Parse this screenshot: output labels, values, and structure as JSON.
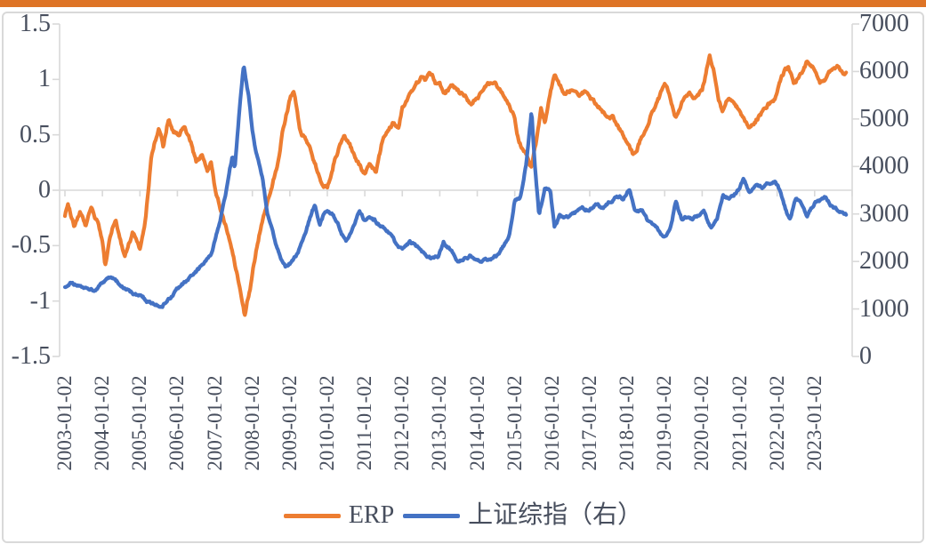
{
  "page": {
    "top_bar_color": "#DE7426",
    "panel_border_color": "#D9D9D9",
    "axis_line_color": "#D9D9D9",
    "axis_text_color": "#474E5D",
    "background_color": "#FFFFFF"
  },
  "chart_data": {
    "type": "line",
    "title": "",
    "grid": "zero-line-only",
    "legend_position": "bottom-center",
    "noise_seed": 987654321,
    "left_axis": {
      "range": [
        -1.5,
        1.5
      ],
      "ticks": [
        1.5,
        1,
        0.5,
        0,
        -0.5,
        -1,
        -1.5
      ],
      "labels": [
        "1.5",
        "1",
        "0.5",
        "0",
        "-0.5",
        "-1",
        "-1.5"
      ]
    },
    "right_axis": {
      "range": [
        0,
        7000
      ],
      "ticks": [
        7000,
        6000,
        5000,
        4000,
        3000,
        2000,
        1000,
        0
      ],
      "labels": [
        "7000",
        "6000",
        "5000",
        "4000",
        "3000",
        "2000",
        "1000",
        "0"
      ]
    },
    "x_axis": {
      "label_years": [
        2003,
        2004,
        2005,
        2006,
        2007,
        2008,
        2009,
        2010,
        2011,
        2012,
        2013,
        2014,
        2015,
        2016,
        2017,
        2018,
        2019,
        2020,
        2021,
        2022,
        2023
      ],
      "tick_years": [
        2003,
        2004,
        2005,
        2006,
        2007,
        2008,
        2009,
        2010,
        2011,
        2012,
        2013,
        2014,
        2015,
        2016,
        2017,
        2018,
        2019,
        2020,
        2021,
        2022,
        2023,
        2024
      ],
      "labels": [
        "2003-01-02",
        "2004-01-02",
        "2005-01-02",
        "2006-01-02",
        "2007-01-02",
        "2008-01-02",
        "2009-01-02",
        "2010-01-02",
        "2011-01-02",
        "2012-01-02",
        "2013-01-02",
        "2014-01-02",
        "2015-01-02",
        "2016-01-02",
        "2017-01-02",
        "2018-01-02",
        "2019-01-02",
        "2020-01-02",
        "2021-01-02",
        "2022-01-02",
        "2023-01-02"
      ]
    },
    "legend": [
      {
        "label": "ERP",
        "color": "#ED7D31"
      },
      {
        "label": "上证综指（右）",
        "color": "#4472C4"
      }
    ],
    "series": [
      {
        "name": "ERP",
        "axis": "left",
        "color": "#ED7D31",
        "noise_amp": 0.03,
        "anchors": [
          [
            2003.0,
            -0.22
          ],
          [
            2003.08,
            -0.13
          ],
          [
            2003.25,
            -0.32
          ],
          [
            2003.4,
            -0.2
          ],
          [
            2003.55,
            -0.33
          ],
          [
            2003.7,
            -0.18
          ],
          [
            2003.85,
            -0.28
          ],
          [
            2004.0,
            -0.48
          ],
          [
            2004.07,
            -0.7
          ],
          [
            2004.2,
            -0.45
          ],
          [
            2004.35,
            -0.27
          ],
          [
            2004.6,
            -0.6
          ],
          [
            2004.8,
            -0.38
          ],
          [
            2005.0,
            -0.52
          ],
          [
            2005.15,
            -0.25
          ],
          [
            2005.3,
            0.3
          ],
          [
            2005.5,
            0.58
          ],
          [
            2005.63,
            0.4
          ],
          [
            2005.77,
            0.67
          ],
          [
            2005.9,
            0.55
          ],
          [
            2006.05,
            0.52
          ],
          [
            2006.2,
            0.58
          ],
          [
            2006.35,
            0.45
          ],
          [
            2006.5,
            0.24
          ],
          [
            2006.65,
            0.31
          ],
          [
            2006.8,
            0.17
          ],
          [
            2006.9,
            0.24
          ],
          [
            2007.0,
            0.02
          ],
          [
            2007.15,
            -0.16
          ],
          [
            2007.35,
            -0.4
          ],
          [
            2007.6,
            -0.78
          ],
          [
            2007.8,
            -1.13
          ],
          [
            2008.0,
            -0.76
          ],
          [
            2008.2,
            -0.38
          ],
          [
            2008.35,
            -0.16
          ],
          [
            2008.5,
            0.05
          ],
          [
            2008.65,
            0.21
          ],
          [
            2008.8,
            0.53
          ],
          [
            2009.0,
            0.83
          ],
          [
            2009.1,
            0.9
          ],
          [
            2009.3,
            0.51
          ],
          [
            2009.45,
            0.43
          ],
          [
            2009.6,
            0.32
          ],
          [
            2009.85,
            0.05
          ],
          [
            2010.0,
            0.02
          ],
          [
            2010.2,
            0.29
          ],
          [
            2010.45,
            0.48
          ],
          [
            2010.6,
            0.44
          ],
          [
            2010.75,
            0.29
          ],
          [
            2010.9,
            0.19
          ],
          [
            2011.0,
            0.13
          ],
          [
            2011.15,
            0.22
          ],
          [
            2011.3,
            0.15
          ],
          [
            2011.5,
            0.51
          ],
          [
            2011.75,
            0.61
          ],
          [
            2011.9,
            0.55
          ],
          [
            2012.0,
            0.75
          ],
          [
            2012.25,
            0.85
          ],
          [
            2012.5,
            1.0
          ],
          [
            2012.6,
            0.95
          ],
          [
            2012.75,
            1.02
          ],
          [
            2012.9,
            0.95
          ],
          [
            2013.0,
            0.93
          ],
          [
            2013.15,
            0.83
          ],
          [
            2013.3,
            0.95
          ],
          [
            2013.5,
            0.89
          ],
          [
            2013.7,
            0.83
          ],
          [
            2013.85,
            0.77
          ],
          [
            2014.0,
            0.84
          ],
          [
            2014.3,
            0.98
          ],
          [
            2014.5,
            0.93
          ],
          [
            2014.7,
            0.86
          ],
          [
            2014.85,
            0.77
          ],
          [
            2015.0,
            0.67
          ],
          [
            2015.1,
            0.48
          ],
          [
            2015.25,
            0.35
          ],
          [
            2015.45,
            0.21
          ],
          [
            2015.6,
            0.5
          ],
          [
            2015.7,
            0.72
          ],
          [
            2015.8,
            0.6
          ],
          [
            2015.9,
            0.78
          ],
          [
            2016.05,
            1.02
          ],
          [
            2016.2,
            0.94
          ],
          [
            2016.35,
            0.87
          ],
          [
            2016.5,
            0.92
          ],
          [
            2016.7,
            0.9
          ],
          [
            2016.9,
            0.89
          ],
          [
            2017.0,
            0.83
          ],
          [
            2017.2,
            0.77
          ],
          [
            2017.4,
            0.69
          ],
          [
            2017.6,
            0.67
          ],
          [
            2017.8,
            0.56
          ],
          [
            2018.0,
            0.41
          ],
          [
            2018.15,
            0.31
          ],
          [
            2018.3,
            0.43
          ],
          [
            2018.5,
            0.56
          ],
          [
            2018.7,
            0.73
          ],
          [
            2018.9,
            0.87
          ],
          [
            2019.0,
            0.94
          ],
          [
            2019.15,
            0.81
          ],
          [
            2019.3,
            0.67
          ],
          [
            2019.5,
            0.83
          ],
          [
            2019.65,
            0.9
          ],
          [
            2019.8,
            0.83
          ],
          [
            2020.0,
            0.92
          ],
          [
            2020.2,
            1.21
          ],
          [
            2020.32,
            1.05
          ],
          [
            2020.45,
            0.83
          ],
          [
            2020.55,
            0.73
          ],
          [
            2020.7,
            0.83
          ],
          [
            2020.85,
            0.8
          ],
          [
            2021.0,
            0.73
          ],
          [
            2021.15,
            0.61
          ],
          [
            2021.3,
            0.56
          ],
          [
            2021.5,
            0.67
          ],
          [
            2021.7,
            0.75
          ],
          [
            2021.9,
            0.83
          ],
          [
            2022.0,
            0.89
          ],
          [
            2022.2,
            1.06
          ],
          [
            2022.3,
            1.1
          ],
          [
            2022.45,
            0.97
          ],
          [
            2022.6,
            1.04
          ],
          [
            2022.8,
            1.15
          ],
          [
            2023.0,
            1.09
          ],
          [
            2023.15,
            0.99
          ],
          [
            2023.3,
            1.03
          ],
          [
            2023.5,
            1.09
          ],
          [
            2023.65,
            1.11
          ],
          [
            2023.85,
            1.07
          ]
        ]
      },
      {
        "name": "上证综指（右）",
        "axis": "right",
        "color": "#4472C4",
        "noise_amp": 48,
        "anchors": [
          [
            2003.0,
            1480
          ],
          [
            2003.2,
            1545
          ],
          [
            2003.4,
            1470
          ],
          [
            2003.6,
            1420
          ],
          [
            2003.8,
            1360
          ],
          [
            2004.0,
            1520
          ],
          [
            2004.25,
            1700
          ],
          [
            2004.5,
            1460
          ],
          [
            2004.75,
            1360
          ],
          [
            2005.0,
            1260
          ],
          [
            2005.2,
            1150
          ],
          [
            2005.45,
            1060
          ],
          [
            2005.6,
            1100
          ],
          [
            2005.77,
            1230
          ],
          [
            2006.0,
            1420
          ],
          [
            2006.25,
            1600
          ],
          [
            2006.5,
            1770
          ],
          [
            2006.7,
            1920
          ],
          [
            2006.9,
            2110
          ],
          [
            2007.0,
            2430
          ],
          [
            2007.15,
            2920
          ],
          [
            2007.3,
            3480
          ],
          [
            2007.47,
            4230
          ],
          [
            2007.53,
            3950
          ],
          [
            2007.68,
            5400
          ],
          [
            2007.77,
            6120
          ],
          [
            2007.9,
            5530
          ],
          [
            2008.0,
            4800
          ],
          [
            2008.1,
            4310
          ],
          [
            2008.28,
            3745
          ],
          [
            2008.4,
            2990
          ],
          [
            2008.6,
            2430
          ],
          [
            2008.75,
            2060
          ],
          [
            2008.88,
            1860
          ],
          [
            2009.0,
            1950
          ],
          [
            2009.15,
            2110
          ],
          [
            2009.4,
            2540
          ],
          [
            2009.6,
            3050
          ],
          [
            2009.67,
            3180
          ],
          [
            2009.8,
            2820
          ],
          [
            2009.95,
            3080
          ],
          [
            2010.15,
            3000
          ],
          [
            2010.3,
            2750
          ],
          [
            2010.5,
            2420
          ],
          [
            2010.65,
            2600
          ],
          [
            2010.85,
            3080
          ],
          [
            2011.0,
            2850
          ],
          [
            2011.2,
            2940
          ],
          [
            2011.4,
            2780
          ],
          [
            2011.6,
            2620
          ],
          [
            2011.8,
            2400
          ],
          [
            2012.0,
            2230
          ],
          [
            2012.2,
            2380
          ],
          [
            2012.4,
            2280
          ],
          [
            2012.6,
            2130
          ],
          [
            2012.8,
            2060
          ],
          [
            2012.95,
            2090
          ],
          [
            2013.1,
            2400
          ],
          [
            2013.3,
            2230
          ],
          [
            2013.5,
            2030
          ],
          [
            2013.7,
            2110
          ],
          [
            2013.9,
            2130
          ],
          [
            2014.1,
            2060
          ],
          [
            2014.3,
            2040
          ],
          [
            2014.5,
            2090
          ],
          [
            2014.7,
            2330
          ],
          [
            2014.85,
            2550
          ],
          [
            2015.0,
            3300
          ],
          [
            2015.15,
            3350
          ],
          [
            2015.3,
            4050
          ],
          [
            2015.45,
            5200
          ],
          [
            2015.55,
            3900
          ],
          [
            2015.65,
            2950
          ],
          [
            2015.8,
            3550
          ],
          [
            2015.95,
            3480
          ],
          [
            2016.06,
            2720
          ],
          [
            2016.2,
            2950
          ],
          [
            2016.4,
            2920
          ],
          [
            2016.6,
            3010
          ],
          [
            2016.8,
            3100
          ],
          [
            2017.0,
            3130
          ],
          [
            2017.2,
            3230
          ],
          [
            2017.35,
            3110
          ],
          [
            2017.5,
            3200
          ],
          [
            2017.7,
            3370
          ],
          [
            2017.9,
            3340
          ],
          [
            2018.05,
            3550
          ],
          [
            2018.2,
            3150
          ],
          [
            2018.4,
            3080
          ],
          [
            2018.55,
            2830
          ],
          [
            2018.75,
            2720
          ],
          [
            2019.0,
            2500
          ],
          [
            2019.15,
            2700
          ],
          [
            2019.3,
            3250
          ],
          [
            2019.45,
            2900
          ],
          [
            2019.6,
            2960
          ],
          [
            2019.75,
            2890
          ],
          [
            2019.9,
            2960
          ],
          [
            2020.05,
            3080
          ],
          [
            2020.15,
            2870
          ],
          [
            2020.25,
            2720
          ],
          [
            2020.4,
            2870
          ],
          [
            2020.55,
            3400
          ],
          [
            2020.7,
            3330
          ],
          [
            2020.85,
            3420
          ],
          [
            2021.0,
            3570
          ],
          [
            2021.1,
            3720
          ],
          [
            2021.25,
            3430
          ],
          [
            2021.4,
            3560
          ],
          [
            2021.6,
            3540
          ],
          [
            2021.75,
            3620
          ],
          [
            2021.95,
            3680
          ],
          [
            2022.1,
            3450
          ],
          [
            2022.25,
            3060
          ],
          [
            2022.35,
            2890
          ],
          [
            2022.5,
            3330
          ],
          [
            2022.65,
            3250
          ],
          [
            2022.8,
            2990
          ],
          [
            2023.0,
            3250
          ],
          [
            2023.15,
            3300
          ],
          [
            2023.3,
            3350
          ],
          [
            2023.45,
            3200
          ],
          [
            2023.6,
            3110
          ],
          [
            2023.75,
            3060
          ],
          [
            2023.85,
            3020
          ]
        ]
      }
    ]
  }
}
